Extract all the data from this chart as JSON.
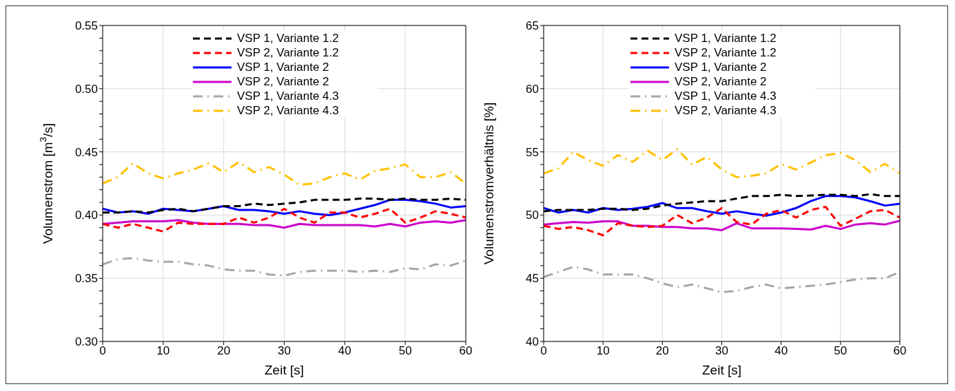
{
  "chart_data": [
    {
      "type": "line",
      "xlabel": "Zeit [s]",
      "ylabel": "Volumenstrom [m$^{3}$/s]",
      "xlim": [
        0,
        60
      ],
      "xticks": [
        0,
        10,
        20,
        30,
        40,
        50,
        60
      ],
      "ylim": [
        0.3,
        0.55
      ],
      "yticks": [
        {
          "value": 0.3,
          "label": "0.30"
        },
        {
          "value": 0.31,
          "label": null
        },
        {
          "value": 0.32,
          "label": null
        },
        {
          "value": 0.33,
          "label": null
        },
        {
          "value": 0.34,
          "label": null
        },
        {
          "value": 0.35,
          "label": "0.35"
        },
        {
          "value": 0.36,
          "label": null
        },
        {
          "value": 0.37,
          "label": null
        },
        {
          "value": 0.38,
          "label": null
        },
        {
          "value": 0.39,
          "label": null
        },
        {
          "value": 0.4,
          "label": "0.40"
        },
        {
          "value": 0.41,
          "label": null
        },
        {
          "value": 0.42,
          "label": null
        },
        {
          "value": 0.43,
          "label": null
        },
        {
          "value": 0.44,
          "label": null
        },
        {
          "value": 0.45,
          "label": "0.45"
        },
        {
          "value": 0.46,
          "label": null
        },
        {
          "value": 0.47,
          "label": null
        },
        {
          "value": 0.48,
          "label": null
        },
        {
          "value": 0.49,
          "label": null
        },
        {
          "value": 0.5,
          "label": "0.50"
        },
        {
          "value": 0.51,
          "label": null
        },
        {
          "value": 0.52,
          "label": null
        },
        {
          "value": 0.53,
          "label": null
        },
        {
          "value": 0.54,
          "label": null
        },
        {
          "value": 0.55,
          "label": "0.55"
        }
      ],
      "grid": true,
      "legend": "top",
      "x": [
        0,
        2.5,
        5,
        7.5,
        10,
        12.5,
        15,
        17.5,
        20,
        22.5,
        25,
        27.5,
        30,
        32.5,
        35,
        37.5,
        40,
        42.5,
        45,
        47.5,
        50,
        52.5,
        55,
        57.5,
        60
      ],
      "series": [
        {
          "name": "VSP 1, Variante 1.2",
          "color": "#000000",
          "line_style": "dashed",
          "values": [
            0.402,
            0.402,
            0.403,
            0.402,
            0.404,
            0.405,
            0.403,
            0.405,
            0.407,
            0.407,
            0.409,
            0.408,
            0.409,
            0.41,
            0.412,
            0.412,
            0.412,
            0.413,
            0.413,
            0.412,
            0.413,
            0.412,
            0.412,
            0.413,
            0.412
          ]
        },
        {
          "name": "VSP 2, Variante 1.2",
          "color": "#ff0000",
          "line_style": "dashed",
          "values": [
            0.393,
            0.39,
            0.393,
            0.39,
            0.387,
            0.394,
            0.393,
            0.393,
            0.393,
            0.398,
            0.394,
            0.398,
            0.405,
            0.398,
            0.394,
            0.402,
            0.402,
            0.398,
            0.401,
            0.405,
            0.394,
            0.398,
            0.403,
            0.401,
            0.398
          ]
        },
        {
          "name": "VSP 1, Variante 2",
          "color": "#0000ff",
          "line_style": "solid",
          "values": [
            0.405,
            0.402,
            0.403,
            0.401,
            0.405,
            0.404,
            0.403,
            0.405,
            0.407,
            0.404,
            0.404,
            0.403,
            0.401,
            0.403,
            0.401,
            0.4,
            0.402,
            0.405,
            0.408,
            0.412,
            0.412,
            0.411,
            0.409,
            0.406,
            0.407
          ]
        },
        {
          "name": "VSP 2, Variante 2",
          "color": "#cc00cc",
          "line_style": "solid",
          "values": [
            0.393,
            0.394,
            0.395,
            0.395,
            0.395,
            0.396,
            0.394,
            0.393,
            0.393,
            0.393,
            0.392,
            0.392,
            0.39,
            0.393,
            0.392,
            0.392,
            0.392,
            0.392,
            0.391,
            0.393,
            0.391,
            0.394,
            0.395,
            0.394,
            0.396
          ]
        },
        {
          "name": "VSP 1, Variante 4.3",
          "color": "#a6a6a6",
          "line_style": "dotted",
          "values": [
            0.361,
            0.365,
            0.366,
            0.364,
            0.363,
            0.363,
            0.361,
            0.36,
            0.357,
            0.356,
            0.356,
            0.353,
            0.352,
            0.355,
            0.356,
            0.356,
            0.356,
            0.355,
            0.356,
            0.355,
            0.358,
            0.357,
            0.361,
            0.36,
            0.364
          ]
        },
        {
          "name": "VSP 2, Variante 4.3",
          "color": "#ffc000",
          "line_style": "dotted",
          "values": [
            0.425,
            0.43,
            0.441,
            0.433,
            0.429,
            0.433,
            0.436,
            0.441,
            0.434,
            0.442,
            0.434,
            0.438,
            0.432,
            0.424,
            0.425,
            0.43,
            0.433,
            0.428,
            0.435,
            0.437,
            0.44,
            0.43,
            0.43,
            0.434,
            0.425
          ]
        }
      ]
    },
    {
      "type": "line",
      "xlabel": "Zeit [s]",
      "ylabel": "Volumenstromverhältnis [%]",
      "xlim": [
        0,
        60
      ],
      "xticks": [
        0,
        10,
        20,
        30,
        40,
        50,
        60
      ],
      "ylim": [
        40,
        65
      ],
      "yticks": [
        40,
        {
          "value": 41,
          "label": null
        },
        {
          "value": 42,
          "label": null
        },
        {
          "value": 43,
          "label": null
        },
        {
          "value": 44,
          "label": null
        },
        45,
        {
          "value": 46,
          "label": null
        },
        {
          "value": 47,
          "label": null
        },
        {
          "value": 48,
          "label": null
        },
        {
          "value": 49,
          "label": null
        },
        50,
        {
          "value": 51,
          "label": null
        },
        {
          "value": 52,
          "label": null
        },
        {
          "value": 53,
          "label": null
        },
        {
          "value": 54,
          "label": null
        },
        55,
        {
          "value": 56,
          "label": null
        },
        {
          "value": 57,
          "label": null
        },
        {
          "value": 58,
          "label": null
        },
        {
          "value": 59,
          "label": null
        },
        60,
        {
          "value": 61,
          "label": null
        },
        {
          "value": 62,
          "label": null
        },
        {
          "value": 63,
          "label": null
        },
        {
          "value": 64,
          "label": null
        },
        65
      ],
      "grid": true,
      "legend": "top",
      "x": [
        0,
        2.5,
        5,
        7.5,
        10,
        12.5,
        15,
        17.5,
        20,
        22.5,
        25,
        27.5,
        30,
        32.5,
        35,
        37.5,
        40,
        42.5,
        45,
        47.5,
        50,
        52.5,
        55,
        57.5,
        60
      ],
      "series": [
        {
          "name": "VSP 1, Variante 1.2",
          "color": "#000000",
          "line_style": "dashed",
          "values": [
            50.3,
            50.4,
            50.4,
            50.4,
            50.5,
            50.5,
            50.4,
            50.5,
            50.75,
            50.9,
            51.0,
            51.1,
            51.1,
            51.3,
            51.5,
            51.5,
            51.6,
            51.5,
            51.55,
            51.6,
            51.6,
            51.5,
            51.65,
            51.5,
            51.5
          ]
        },
        {
          "name": "VSP 2, Variante 1.2",
          "color": "#ff0000",
          "line_style": "dashed",
          "values": [
            49.15,
            48.9,
            49.05,
            48.8,
            48.4,
            49.35,
            49.15,
            49.05,
            49.15,
            50.0,
            49.35,
            49.8,
            50.55,
            49.45,
            49.25,
            50.1,
            50.4,
            49.8,
            50.4,
            50.65,
            49.15,
            49.7,
            50.3,
            50.4,
            49.8
          ]
        },
        {
          "name": "VSP 1, Variante 2",
          "color": "#0000ff",
          "line_style": "solid",
          "values": [
            50.55,
            50.2,
            50.4,
            50.2,
            50.55,
            50.4,
            50.5,
            50.65,
            50.95,
            50.55,
            50.55,
            50.3,
            50.1,
            50.3,
            50.1,
            49.95,
            50.2,
            50.55,
            51.1,
            51.5,
            51.5,
            51.4,
            51.1,
            50.75,
            50.9
          ]
        },
        {
          "name": "VSP 2, Variante 2",
          "color": "#cc00cc",
          "line_style": "solid",
          "values": [
            49.25,
            49.35,
            49.45,
            49.4,
            49.5,
            49.5,
            49.15,
            49.15,
            49.05,
            49.05,
            48.95,
            48.95,
            48.8,
            49.35,
            48.95,
            48.95,
            48.95,
            48.9,
            48.85,
            49.15,
            48.9,
            49.25,
            49.35,
            49.25,
            49.55
          ]
        },
        {
          "name": "VSP 1, Variante 4.3",
          "color": "#a6a6a6",
          "line_style": "dotted",
          "values": [
            45.1,
            45.5,
            45.9,
            45.7,
            45.3,
            45.3,
            45.3,
            45.0,
            44.6,
            44.3,
            44.5,
            44.2,
            43.9,
            44.0,
            44.3,
            44.5,
            44.2,
            44.3,
            44.4,
            44.5,
            44.7,
            44.9,
            45.0,
            45.0,
            45.5
          ]
        },
        {
          "name": "VSP 2, Variante 4.3",
          "color": "#ffc000",
          "line_style": "dotted",
          "values": [
            53.3,
            53.7,
            55.0,
            54.35,
            53.9,
            54.75,
            54.2,
            55.1,
            54.35,
            55.2,
            54.0,
            54.6,
            53.6,
            53.0,
            53.1,
            53.3,
            54.05,
            53.6,
            54.15,
            54.75,
            54.9,
            54.35,
            53.4,
            54.05,
            53.3
          ]
        }
      ]
    }
  ]
}
